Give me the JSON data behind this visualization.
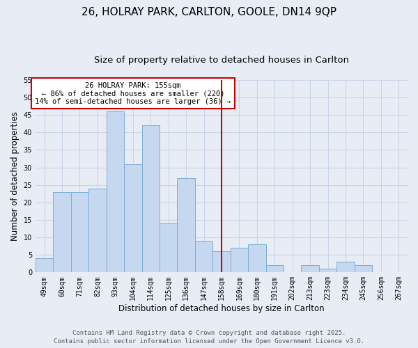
{
  "title": "26, HOLRAY PARK, CARLTON, GOOLE, DN14 9QP",
  "subtitle": "Size of property relative to detached houses in Carlton",
  "xlabel": "Distribution of detached houses by size in Carlton",
  "ylabel": "Number of detached properties",
  "bar_labels": [
    "49sqm",
    "60sqm",
    "71sqm",
    "82sqm",
    "93sqm",
    "104sqm",
    "114sqm",
    "125sqm",
    "136sqm",
    "147sqm",
    "158sqm",
    "169sqm",
    "180sqm",
    "191sqm",
    "202sqm",
    "213sqm",
    "223sqm",
    "234sqm",
    "245sqm",
    "256sqm",
    "267sqm"
  ],
  "bar_values": [
    4,
    23,
    23,
    24,
    46,
    31,
    42,
    14,
    27,
    9,
    6,
    7,
    8,
    2,
    0,
    2,
    1,
    3,
    2,
    0,
    0
  ],
  "bar_color": "#c5d8f0",
  "bar_edge_color": "#7badd4",
  "vline_x_index": 10,
  "vline_color": "#cc0000",
  "ylim": [
    0,
    55
  ],
  "yticks": [
    0,
    5,
    10,
    15,
    20,
    25,
    30,
    35,
    40,
    45,
    50,
    55
  ],
  "annotation_title": "26 HOLRAY PARK: 155sqm",
  "annotation_line1": "← 86% of detached houses are smaller (220)",
  "annotation_line2": "14% of semi-detached houses are larger (36) →",
  "annotation_box_color": "#ffffff",
  "annotation_box_edge": "#cc0000",
  "footer1": "Contains HM Land Registry data © Crown copyright and database right 2025.",
  "footer2": "Contains public sector information licensed under the Open Government Licence v3.0.",
  "bg_color": "#e8edf5",
  "grid_color": "#c8d4e8",
  "title_fontsize": 11,
  "subtitle_fontsize": 9.5,
  "tick_fontsize": 7,
  "axis_label_fontsize": 8.5,
  "footer_fontsize": 6.5
}
